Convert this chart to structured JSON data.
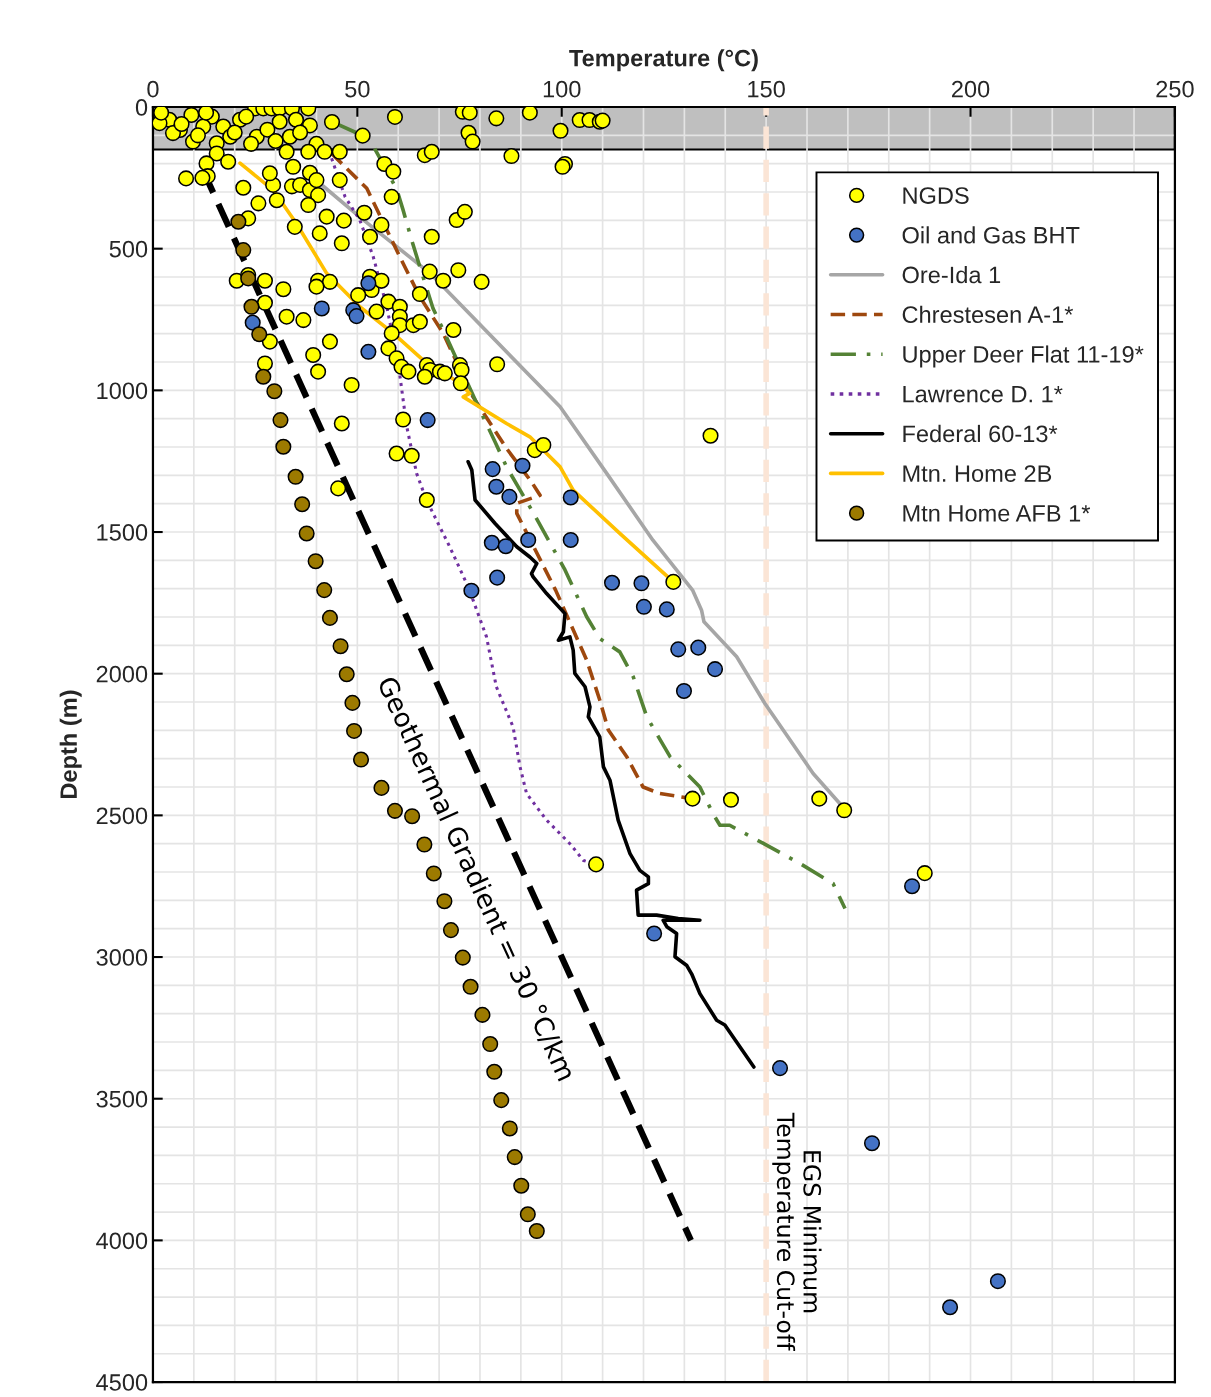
{
  "chart_data": {
    "type": "scatter",
    "xlabel": "Temperature (°C)",
    "ylabel": "Depth (m)",
    "xlim": [
      0,
      250
    ],
    "ylim": [
      4500,
      0
    ],
    "xticks": [
      0,
      {
        "value": 10,
        "label": null
      },
      {
        "value": 20,
        "label": null
      },
      {
        "value": 30,
        "label": null
      },
      {
        "value": 40,
        "label": null
      },
      50,
      {
        "value": 60,
        "label": null
      },
      {
        "value": 70,
        "label": null
      },
      {
        "value": 80,
        "label": null
      },
      {
        "value": 90,
        "label": null
      },
      100,
      {
        "value": 110,
        "label": null
      },
      {
        "value": 120,
        "label": null
      },
      {
        "value": 130,
        "label": null
      },
      {
        "value": 140,
        "label": null
      },
      150,
      {
        "value": 160,
        "label": null
      },
      {
        "value": 170,
        "label": null
      },
      {
        "value": 180,
        "label": null
      },
      {
        "value": 190,
        "label": null
      },
      200,
      {
        "value": 210,
        "label": null
      },
      {
        "value": 220,
        "label": null
      },
      {
        "value": 230,
        "label": null
      },
      {
        "value": 240,
        "label": null
      },
      250
    ],
    "yticks": [
      0,
      {
        "value": 100,
        "label": null
      },
      {
        "value": 200,
        "label": null
      },
      {
        "value": 300,
        "label": null
      },
      {
        "value": 400,
        "label": null
      },
      500,
      {
        "value": 600,
        "label": null
      },
      {
        "value": 700,
        "label": null
      },
      {
        "value": 800,
        "label": null
      },
      {
        "value": 900,
        "label": null
      },
      1000,
      {
        "value": 1100,
        "label": null
      },
      {
        "value": 1200,
        "label": null
      },
      {
        "value": 1300,
        "label": null
      },
      {
        "value": 1400,
        "label": null
      },
      1500,
      {
        "value": 1600,
        "label": null
      },
      {
        "value": 1700,
        "label": null
      },
      {
        "value": 1800,
        "label": null
      },
      {
        "value": 1900,
        "label": null
      },
      2000,
      {
        "value": 2100,
        "label": null
      },
      {
        "value": 2200,
        "label": null
      },
      {
        "value": 2300,
        "label": null
      },
      {
        "value": 2400,
        "label": null
      },
      2500,
      {
        "value": 2600,
        "label": null
      },
      {
        "value": 2700,
        "label": null
      },
      {
        "value": 2800,
        "label": null
      },
      {
        "value": 2900,
        "label": null
      },
      3000,
      {
        "value": 3100,
        "label": null
      },
      {
        "value": 3200,
        "label": null
      },
      {
        "value": 3300,
        "label": null
      },
      {
        "value": 3400,
        "label": null
      },
      3500,
      {
        "value": 3600,
        "label": null
      },
      {
        "value": 3700,
        "label": null
      },
      {
        "value": 3800,
        "label": null
      },
      {
        "value": 3900,
        "label": null
      },
      4000,
      {
        "value": 4100,
        "label": null
      },
      {
        "value": 4200,
        "label": null
      },
      {
        "value": 4300,
        "label": null
      },
      {
        "value": 4400,
        "label": null
      },
      4500
    ],
    "grid": true,
    "legend": "top right",
    "series": [
      {
        "name": "NGDS",
        "marker": "circle",
        "color": "#ffff00",
        "x": [
          25,
          27,
          29,
          31,
          34,
          38,
          43.8,
          51.3,
          59.2,
          75.8,
          77.5,
          77.2,
          78.2,
          84,
          92.2,
          99.7,
          104.4,
          106.8,
          109.3,
          110,
          4,
          6.6,
          9.4,
          9.8,
          14.4,
          17.2,
          21.3,
          22.8,
          31,
          35,
          38.4,
          33.5,
          25.4,
          18.9,
          15.6,
          12.3,
          4.9,
          1.6,
          2,
          7,
          11,
          20,
          24,
          28,
          30,
          36,
          40,
          13,
          15.6,
          13.1,
          13.4,
          12.1,
          8.1,
          18.4,
          22.1,
          25.8,
          23.3,
          29.4,
          30.3,
          28.6,
          34.7,
          34.3,
          34,
          36,
          38.4,
          38.4,
          40.4,
          38,
          40,
          32.7,
          38,
          42,
          45.7,
          45.7,
          42.5,
          40.8,
          46.2,
          46.7,
          51.7,
          53.1,
          55.9,
          56.6,
          58.8,
          58.4,
          66.5,
          68.2,
          74.3,
          76.3,
          68.2,
          87.7,
          100.8,
          100.2,
          20.5,
          23.3,
          27.4,
          31.9,
          40.4,
          43.3,
          40,
          53.1,
          53.5,
          55.9,
          50.2,
          67.7,
          71,
          74.7,
          80.4,
          65.3,
          27.4,
          57.6,
          60.4,
          60.4,
          60.4,
          58.4,
          63.7,
          65.3,
          73.5,
          54.7,
          32.7,
          36.8,
          28.6,
          43.3,
          27.4,
          39.2,
          40.4,
          48.6,
          57.6,
          59.6,
          60.8,
          62.5,
          67,
          67.8,
          66.5,
          70.2,
          71.4,
          75.1,
          75.5,
          75.3,
          84.2,
          46.2,
          61.2,
          59.6,
          63.3,
          45.3,
          67,
          93.4,
          95.5,
          136.4,
          127.3,
          132,
          141.4,
          163,
          169.1,
          108.4,
          188.8
        ],
        "values": [
          5,
          5,
          5,
          5,
          5,
          5,
          53,
          101,
          35,
          17,
          20,
          91,
          122,
          40,
          20,
          84,
          46,
          46,
          52,
          48,
          45,
          81,
          28,
          122,
          34,
          69,
          45,
          34,
          52,
          45,
          65,
          105,
          105,
          105,
          128,
          69,
          92,
          57,
          20,
          60,
          100,
          90,
          130,
          80,
          120,
          90,
          130,
          20,
          164,
          199,
          244,
          250,
          252,
          193,
          285,
          340,
          393,
          275,
          329,
          234,
          423,
          211,
          280,
          275,
          293,
          232,
          311,
          346,
          258,
          158,
          158,
          158,
          158,
          258,
          387,
          446,
          481,
          401,
          373,
          458,
          416,
          201,
          228,
          317,
          170,
          158,
          399,
          370,
          458,
          173,
          201,
          211,
          613,
          593,
          613,
          643,
          613,
          617,
          634,
          599,
          646,
          613,
          664,
          581,
          613,
          576,
          617,
          660,
          691,
          687,
          705,
          740,
          770,
          799,
          770,
          758,
          787,
          722,
          740,
          752,
          828,
          828,
          905,
          875,
          934,
          981,
          852,
          887,
          917,
          934,
          911,
          928,
          952,
          934,
          940,
          911,
          928,
          975,
          908,
          1117,
          1103,
          1223,
          1231,
          1346,
          1387,
          1211,
          1193,
          1160,
          1676,
          2441,
          2445,
          2441,
          2482,
          2673,
          2704
        ]
      },
      {
        "name": "Oil and Gas BHT",
        "marker": "circle",
        "color": "#4472c4",
        "x": [
          52.7,
          41.3,
          49,
          49.8,
          24.4,
          52.7,
          67.2,
          83.1,
          90.4,
          84,
          87.2,
          102.2,
          82.9,
          86.3,
          91.8,
          102.2,
          84.2,
          77.9,
          112.3,
          119.5,
          120.1,
          125.7,
          128.5,
          133.4,
          137.5,
          129.9,
          122.6,
          153.4,
          175.9,
          206.7,
          195,
          185.7
        ],
        "values": [
          622,
          711,
          717,
          738,
          761,
          864,
          1105,
          1278,
          1266,
          1340,
          1376,
          1378,
          1538,
          1550,
          1528,
          1528,
          1661,
          1707,
          1679,
          1681,
          1764,
          1773,
          1914,
          1908,
          1984,
          2061,
          2917,
          3392,
          3657,
          4144,
          4236,
          2750
        ]
      },
      {
        "name": "Ore-Ida 1",
        "type": "line",
        "line_style": "solid",
        "color": "#a6a6a6",
        "x": [
          39,
          51,
          67.8,
          99.6,
          111,
          122.3,
          132,
          134.2,
          134.8,
          142.8,
          149.7,
          161.5,
          169.1
        ],
        "values": [
          247,
          393,
          587,
          1058,
          1293,
          1529,
          1705,
          1776,
          1817,
          1940,
          2105,
          2352,
          2476
        ]
      },
      {
        "name": "Chrestesen A-1*",
        "type": "line",
        "line_style": "dashed",
        "color": "#9e480e",
        "x": [
          43.7,
          52.3,
          60.4,
          65.3,
          71,
          78.3,
          86.5,
          92.6,
          94.7,
          89,
          89,
          98.5,
          103.2,
          106.1,
          109.3,
          111.4,
          115.9,
          119.9,
          124,
          132
        ],
        "values": [
          164,
          287,
          529,
          670,
          799,
          1023,
          1205,
          1323,
          1370,
          1399,
          1434,
          1705,
          1858,
          1952,
          2093,
          2199,
          2293,
          2400,
          2423,
          2441
        ]
      },
      {
        "name": "Upper Deer Flat 11-19*",
        "type": "line",
        "line_style": "dashdot",
        "color": "#548235",
        "x": [
          44,
          51,
          54,
          57.5,
          59.7,
          61.2,
          63.3,
          65.3,
          68.5,
          71.4,
          80,
          83.7,
          86.5,
          92.2,
          95.4,
          100.8,
          106.1,
          109.3,
          114.2,
          117.5,
          120.8,
          126.5,
          133.8,
          137,
          138.7,
          141.1,
          150.1,
          158.3,
          166.4,
          169.3
        ],
        "values": [
          53,
          99,
          141,
          233,
          293,
          364,
          470,
          564,
          710,
          799,
          1070,
          1182,
          1270,
          1411,
          1493,
          1634,
          1799,
          1876,
          1923,
          2011,
          2152,
          2293,
          2400,
          2494,
          2535,
          2535,
          2605,
          2670,
          2741,
          2829
        ]
      },
      {
        "name": "Lawrence D. 1*",
        "type": "line",
        "line_style": "dotted",
        "color": "#7030a0",
        "x": [
          43.7,
          47,
          50.6,
          53.9,
          57.2,
          60,
          62.1,
          64.5,
          66.9,
          72.6,
          77.1,
          81.6,
          84,
          88.1,
          89.8,
          91.4,
          96.3,
          102,
          105.3,
          108.4
        ],
        "values": [
          181,
          317,
          399,
          529,
          705,
          905,
          1129,
          1293,
          1387,
          1552,
          1693,
          1870,
          2046,
          2188,
          2329,
          2423,
          2517,
          2600,
          2659,
          2673
        ]
      },
      {
        "name": "Federal 60-13*",
        "type": "line",
        "line_style": "solid",
        "color": "#000000",
        "x": [
          77.1,
          78,
          78.8,
          83.7,
          89,
          92.2,
          93.9,
          92.6,
          93,
          96.3,
          100.8,
          100.4,
          99.2,
          102,
          102.8,
          103.2,
          105.7,
          106.9,
          106.5,
          109.3,
          110.2,
          111.8,
          113.8,
          116.7,
          119.1,
          121.2,
          121.2,
          118.3,
          118.7,
          123.2,
          128.5,
          133.8,
          124.8,
          125.7,
          128.1,
          127.7,
          130.6,
          131.8,
          133.8,
          137.9,
          139.9,
          147
        ],
        "values": [
          1252,
          1281,
          1387,
          1470,
          1552,
          1588,
          1611,
          1647,
          1658,
          1717,
          1788,
          1852,
          1882,
          1870,
          1917,
          1999,
          2046,
          2117,
          2152,
          2223,
          2329,
          2376,
          2517,
          2635,
          2694,
          2717,
          2741,
          2764,
          2852,
          2852,
          2864,
          2870,
          2870,
          2893,
          2917,
          2999,
          3030,
          3060,
          3129,
          3223,
          3240,
          3388
        ]
      },
      {
        "name": "Mtn. Home 2B",
        "type": "line",
        "line_style": "solid",
        "color": "#ffc000",
        "x": [
          21.3,
          29.4,
          35.1,
          42.5,
          50.6,
          58.8,
          66.1,
          75.1,
          77.5,
          75.9,
          86.5,
          92.2,
          99.6,
          102.8,
          114.2,
          127.3
        ],
        "values": [
          198,
          293,
          411,
          587,
          705,
          799,
          893,
          975,
          1011,
          1023,
          1117,
          1164,
          1270,
          1352,
          1505,
          1676
        ]
      },
      {
        "name": "Mtn Home AFB 1*",
        "marker": "circle",
        "color": "#9c7a00",
        "x": [
          20.9,
          22.1,
          23.3,
          24.1,
          26,
          27,
          29.7,
          31.2,
          31.9,
          34.9,
          36.5,
          37.6,
          39.8,
          41.9,
          43.3,
          45.9,
          47.4,
          48.8,
          49.2,
          50.9,
          55.9,
          59.2,
          63.4,
          66.4,
          68.7,
          71.3,
          72.9,
          75.8,
          77.7,
          80.6,
          82.5,
          83.5,
          85.2,
          87.3,
          88.5,
          90.1,
          91.7,
          93.9
        ],
        "values": [
          405,
          505,
          605,
          705,
          802,
          952,
          1003,
          1105,
          1199,
          1305,
          1402,
          1505,
          1603,
          1705,
          1803,
          1903,
          2002,
          2103,
          2202,
          2303,
          2403,
          2484,
          2503,
          2603,
          2705,
          2803,
          2905,
          3002,
          3105,
          3204,
          3307,
          3405,
          3505,
          3605,
          3706,
          3807,
          3908,
          3967
        ]
      },
      {
        "type": "line",
        "line_style": "dashed",
        "color": "#000000",
        "x": [
          12.2,
          131.6
        ],
        "values": [
          222,
          4000
        ]
      }
    ],
    "bands": [
      {
        "axis": "y",
        "from": 0,
        "to": 150,
        "color": "#bfbfbf"
      }
    ],
    "ref_lines": [
      {
        "axis": "x",
        "value": 150,
        "label": "EGS Minimum\nTemperature Cut-off",
        "color": "#fbe5d6",
        "line_style": "dashed"
      }
    ],
    "annotations": [
      "Geothermal Gradient = 30 °C/km"
    ]
  }
}
